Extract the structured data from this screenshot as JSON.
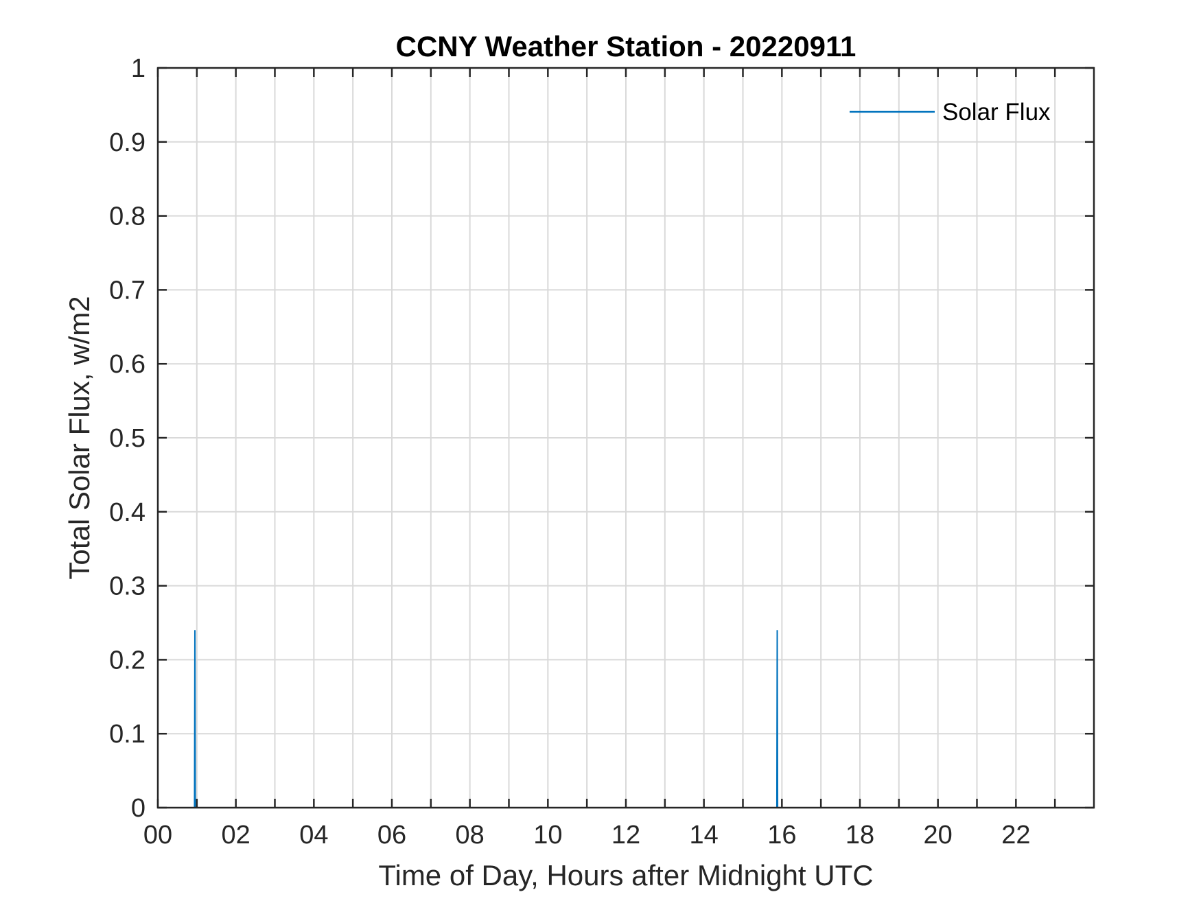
{
  "chart_data": {
    "type": "line",
    "title": "CCNY Weather Station - 20220911",
    "xlabel": "Time of Day, Hours after Midnight UTC",
    "ylabel": "Total Solar Flux, w/m2",
    "xlim": [
      0,
      24
    ],
    "ylim": [
      0,
      1
    ],
    "x_major_ticks": [
      0,
      2,
      4,
      6,
      8,
      10,
      12,
      14,
      16,
      18,
      20,
      22
    ],
    "x_tick_labels": [
      "00",
      "02",
      "04",
      "06",
      "08",
      "10",
      "12",
      "14",
      "16",
      "18",
      "20",
      "22"
    ],
    "x_minor_ticks": [
      1,
      3,
      5,
      7,
      9,
      11,
      13,
      15,
      17,
      19,
      21,
      23
    ],
    "y_ticks": [
      0,
      0.1,
      0.2,
      0.3,
      0.4,
      0.5,
      0.6,
      0.7,
      0.8,
      0.9,
      1
    ],
    "y_tick_labels": [
      "0",
      "0.1",
      "0.2",
      "0.3",
      "0.4",
      "0.5",
      "0.6",
      "0.7",
      "0.8",
      "0.9",
      "1"
    ],
    "grid": true,
    "legend_position": "top-right",
    "series": [
      {
        "name": "Solar Flux",
        "color": "#0072bd",
        "x": [
          0,
          0.94,
          0.95,
          0.96,
          15.87,
          15.88,
          15.89,
          24
        ],
        "y": [
          0,
          0,
          0.24,
          0,
          0,
          0.24,
          0,
          0
        ]
      }
    ]
  }
}
